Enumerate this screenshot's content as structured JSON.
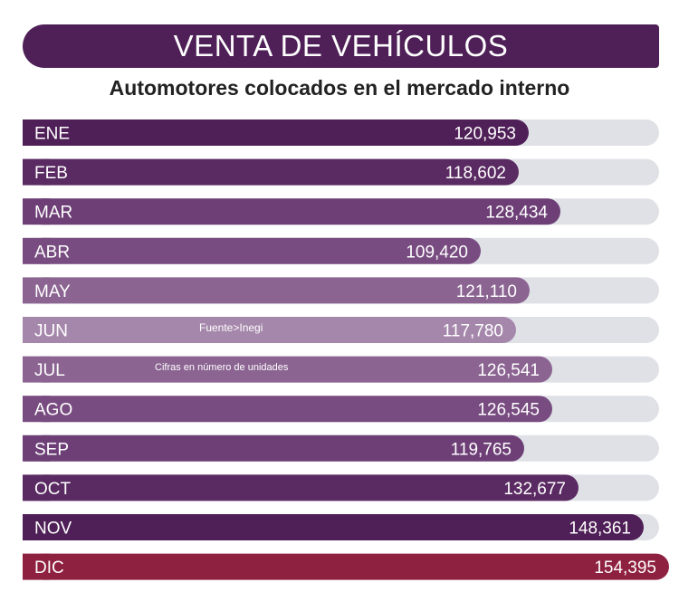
{
  "title": "VENTA DE VEHÍCULOS",
  "subtitle": "Automotores colocados en el mercado interno",
  "notes": {
    "source": "Fuente>Inegi",
    "units": "Cifras en número de unidades"
  },
  "colors": {
    "track": "#dfe1e6",
    "title_band": "#4f1f57",
    "months": [
      "#4f1f57",
      "#5a2a62",
      "#6d3f76",
      "#784c80",
      "#8b6492",
      "#a587ab",
      "#8b6492",
      "#784c80",
      "#6d3f76",
      "#5a2a62",
      "#4f1f57",
      "#8f2140"
    ]
  },
  "chart_data": {
    "type": "bar",
    "orientation": "horizontal",
    "title": "VENTA DE VEHÍCULOS",
    "subtitle": "Automotores colocados en el mercado interno",
    "categories": [
      "ENE",
      "FEB",
      "MAR",
      "ABR",
      "MAY",
      "JUN",
      "JUL",
      "AGO",
      "SEP",
      "OCT",
      "NOV",
      "DIC"
    ],
    "values": [
      120953,
      118602,
      128434,
      109420,
      121110,
      117780,
      126541,
      126545,
      119765,
      132677,
      148361,
      154395
    ],
    "labels": [
      "120,953",
      "118,602",
      "128,434",
      "109,420",
      "121,110",
      "117,780",
      "126,541",
      "126,545",
      "119,765",
      "132,677",
      "148,361",
      "154,395"
    ],
    "track_max": 148361
  }
}
